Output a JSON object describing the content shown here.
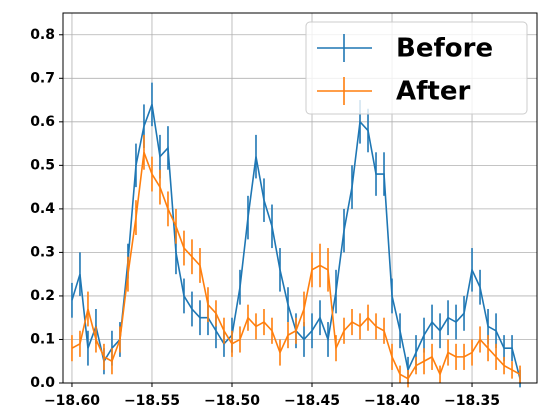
{
  "chart_data": {
    "type": "errorbar_line",
    "x": [
      -18.6,
      -18.595,
      -18.59,
      -18.585,
      -18.58,
      -18.575,
      -18.57,
      -18.565,
      -18.56,
      -18.555,
      -18.55,
      -18.545,
      -18.54,
      -18.535,
      -18.53,
      -18.525,
      -18.52,
      -18.515,
      -18.51,
      -18.505,
      -18.5,
      -18.495,
      -18.49,
      -18.485,
      -18.48,
      -18.475,
      -18.47,
      -18.465,
      -18.46,
      -18.455,
      -18.45,
      -18.445,
      -18.44,
      -18.435,
      -18.43,
      -18.425,
      -18.42,
      -18.415,
      -18.41,
      -18.405,
      -18.4,
      -18.395,
      -18.39,
      -18.385,
      -18.38,
      -18.375,
      -18.37,
      -18.365,
      -18.36,
      -18.355,
      -18.35,
      -18.345,
      -18.34,
      -18.335,
      -18.33,
      -18.325,
      -18.32
    ],
    "series": [
      {
        "name": "Before",
        "color": "#1f77b4",
        "values": [
          0.19,
          0.25,
          0.08,
          0.13,
          0.05,
          0.08,
          0.1,
          0.28,
          0.5,
          0.59,
          0.64,
          0.52,
          0.54,
          0.3,
          0.2,
          0.17,
          0.15,
          0.15,
          0.12,
          0.09,
          0.11,
          0.22,
          0.38,
          0.52,
          0.42,
          0.36,
          0.26,
          0.18,
          0.12,
          0.1,
          0.12,
          0.15,
          0.1,
          0.21,
          0.35,
          0.45,
          0.6,
          0.58,
          0.48,
          0.48,
          0.2,
          0.12,
          0.03,
          0.07,
          0.11,
          0.14,
          0.12,
          0.15,
          0.14,
          0.16,
          0.26,
          0.22,
          0.13,
          0.12,
          0.08,
          0.08,
          0.01
        ],
        "errors": [
          0.04,
          0.05,
          0.04,
          0.04,
          0.03,
          0.04,
          0.04,
          0.04,
          0.05,
          0.05,
          0.05,
          0.05,
          0.05,
          0.05,
          0.04,
          0.04,
          0.04,
          0.04,
          0.04,
          0.03,
          0.04,
          0.04,
          0.05,
          0.05,
          0.05,
          0.05,
          0.05,
          0.04,
          0.04,
          0.04,
          0.04,
          0.04,
          0.04,
          0.05,
          0.05,
          0.05,
          0.05,
          0.05,
          0.05,
          0.05,
          0.04,
          0.04,
          0.03,
          0.04,
          0.04,
          0.04,
          0.04,
          0.04,
          0.04,
          0.04,
          0.05,
          0.04,
          0.04,
          0.04,
          0.03,
          0.03,
          0.02
        ]
      },
      {
        "name": "After",
        "color": "#ff7f0e",
        "values": [
          0.08,
          0.09,
          0.17,
          0.1,
          0.06,
          0.05,
          0.1,
          0.25,
          0.38,
          0.53,
          0.48,
          0.45,
          0.4,
          0.36,
          0.31,
          0.29,
          0.27,
          0.18,
          0.16,
          0.12,
          0.09,
          0.1,
          0.15,
          0.13,
          0.14,
          0.12,
          0.07,
          0.11,
          0.12,
          0.17,
          0.26,
          0.27,
          0.26,
          0.08,
          0.12,
          0.14,
          0.13,
          0.15,
          0.13,
          0.12,
          0.06,
          0.02,
          0.01,
          0.04,
          0.05,
          0.06,
          0.02,
          0.07,
          0.06,
          0.06,
          0.07,
          0.1,
          0.08,
          0.06,
          0.04,
          0.03,
          0.02
        ],
        "errors": [
          0.03,
          0.03,
          0.04,
          0.03,
          0.03,
          0.03,
          0.03,
          0.04,
          0.04,
          0.04,
          0.04,
          0.04,
          0.04,
          0.04,
          0.04,
          0.04,
          0.04,
          0.04,
          0.03,
          0.03,
          0.03,
          0.03,
          0.03,
          0.03,
          0.03,
          0.03,
          0.03,
          0.03,
          0.03,
          0.04,
          0.04,
          0.05,
          0.05,
          0.03,
          0.03,
          0.03,
          0.03,
          0.03,
          0.03,
          0.03,
          0.03,
          0.02,
          0.02,
          0.02,
          0.03,
          0.03,
          0.02,
          0.03,
          0.03,
          0.03,
          0.03,
          0.03,
          0.03,
          0.03,
          0.02,
          0.02,
          0.02
        ]
      }
    ],
    "xlim": [
      -18.6056,
      -18.3094
    ],
    "ylim": [
      0,
      0.85
    ],
    "xticks": [
      {
        "value": -18.6,
        "label": "−18.60"
      },
      {
        "value": -18.55,
        "label": "−18.55"
      },
      {
        "value": -18.5,
        "label": "−18.50"
      },
      {
        "value": -18.45,
        "label": "−18.45"
      },
      {
        "value": -18.4,
        "label": "−18.40"
      },
      {
        "value": -18.35,
        "label": "−18.35"
      }
    ],
    "yticks": [
      {
        "value": 0,
        "label": "0.0"
      },
      0.1,
      0.2,
      0.3,
      0.4,
      0.5,
      0.6,
      0.7,
      0.8
    ],
    "grid": true,
    "legend": "upper right"
  }
}
